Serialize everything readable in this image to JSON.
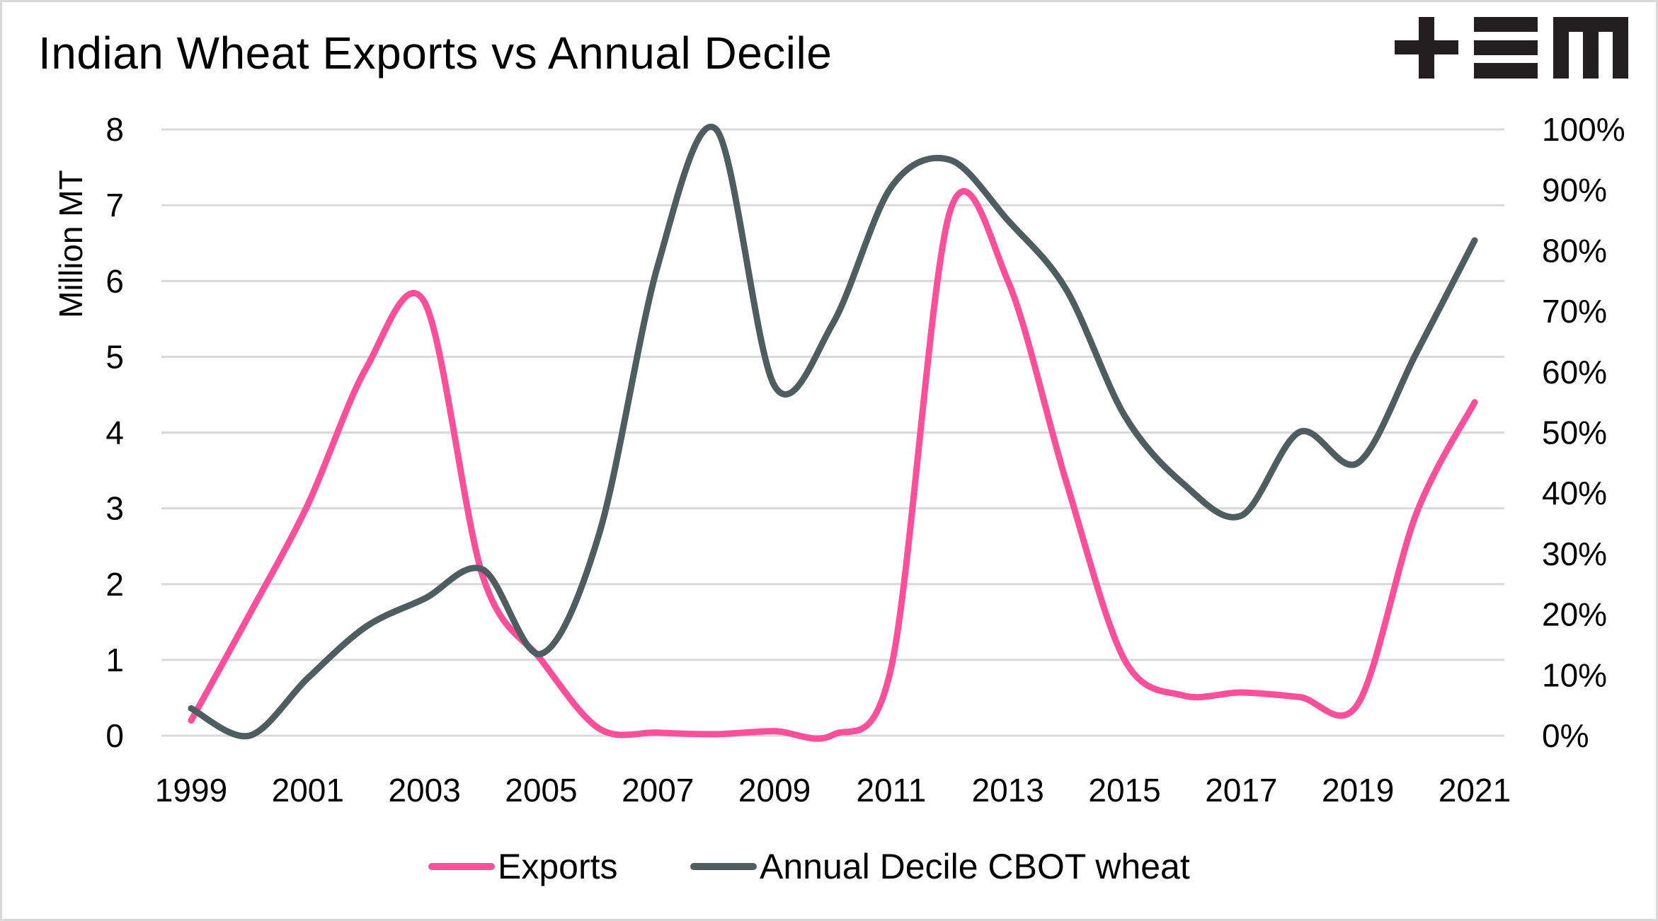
{
  "title": "Indian Wheat Exports vs Annual Decile",
  "logo": {
    "name": "tem-logo",
    "text": "+EM"
  },
  "colors": {
    "exports": "#FF4F9A",
    "decile": "#4E5E60",
    "grid": "#D9D9D9",
    "frame": "#D9D9D9"
  },
  "chart_data": {
    "type": "line",
    "title": "Indian Wheat Exports vs Annual Decile",
    "xlabel": "",
    "ylabel": "Million MT",
    "y2label": "",
    "ylim": [
      0,
      8
    ],
    "y2lim": [
      0,
      100
    ],
    "y_ticks": [
      "0",
      "1",
      "2",
      "3",
      "4",
      "5",
      "6",
      "7",
      "8"
    ],
    "y2_ticks": [
      "0%",
      "10%",
      "20%",
      "30%",
      "40%",
      "50%",
      "60%",
      "70%",
      "80%",
      "90%",
      "100%"
    ],
    "x_tick_labels": [
      "1999",
      "2001",
      "2003",
      "2005",
      "2007",
      "2009",
      "2011",
      "2013",
      "2015",
      "2017",
      "2019",
      "2021"
    ],
    "grid": true,
    "smooth": true,
    "legend_position": "bottom",
    "x": [
      1999,
      2000,
      2001,
      2002,
      2003,
      2004,
      2005,
      2006,
      2007,
      2008,
      2009,
      2010,
      2011,
      2012,
      2013,
      2014,
      2015,
      2016,
      2017,
      2018,
      2019,
      2020,
      2021
    ],
    "series": [
      {
        "name": "Exports",
        "axis": "left",
        "unit": "Million MT",
        "values": [
          0.2,
          1.6,
          3.05,
          4.85,
          5.72,
          2.1,
          1.0,
          0.09,
          0.04,
          0.02,
          0.06,
          0.01,
          0.9,
          6.9,
          6.0,
          3.35,
          1.0,
          0.53,
          0.57,
          0.51,
          0.42,
          2.93,
          4.4
        ]
      },
      {
        "name": "Annual Decile CBOT wheat",
        "axis": "right",
        "unit": "%",
        "values": [
          4.5,
          0,
          9.5,
          18,
          22.6,
          27.4,
          13.5,
          33.5,
          77.6,
          100,
          57.7,
          68,
          90.5,
          95,
          85,
          73.6,
          52.8,
          41.6,
          36.3,
          50.1,
          45,
          63.1,
          81.7
        ]
      }
    ]
  }
}
